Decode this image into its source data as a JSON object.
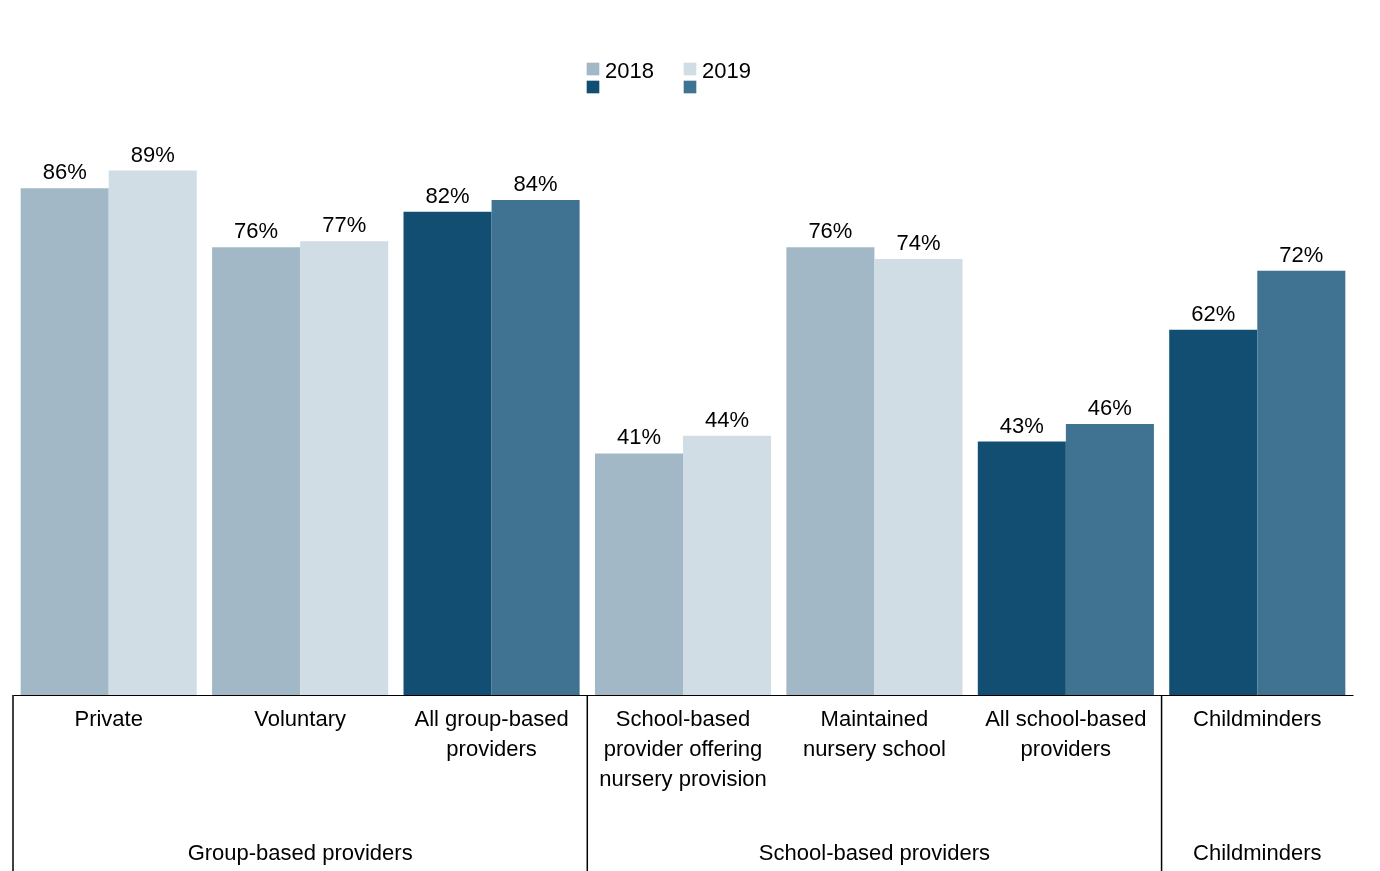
{
  "chart_data": {
    "type": "bar",
    "categories": [
      "Private",
      "Voluntary",
      "All group-based providers",
      "School-based provider offering nursery provision",
      "Maintained nursery school",
      "All school-based providers",
      "Childminders"
    ],
    "series": [
      {
        "name": "2018",
        "colors": [
          "#a3b8c7",
          "#a3b8c7",
          "#124e72",
          "#a3b8c7",
          "#a3b8c7",
          "#124e72",
          "#124e72"
        ],
        "values": [
          86,
          76,
          82,
          41,
          76,
          43,
          62
        ],
        "value_labels": [
          "86%",
          "76%",
          "82%",
          "41%",
          "76%",
          "43%",
          "62%"
        ]
      },
      {
        "name": "2019",
        "colors": [
          "#d0dde5",
          "#d0dde5",
          "#3f7391",
          "#d0dde5",
          "#d0dde5",
          "#3f7391",
          "#3f7391"
        ],
        "values": [
          89,
          77,
          84,
          44,
          74,
          46,
          72
        ],
        "value_labels": [
          "89%",
          "77%",
          "84%",
          "44%",
          "74%",
          "46%",
          "72%"
        ]
      }
    ],
    "annotations": [
      "Group-based providers",
      "School-based providers",
      "Childminders"
    ],
    "legend": "top"
  }
}
